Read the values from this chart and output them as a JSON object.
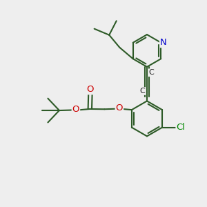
{
  "bg_color": "#eeeeee",
  "bond_color": "#2d5a27",
  "bond_width": 1.5,
  "atom_colors": {
    "N": "#0000cc",
    "O": "#cc0000",
    "Cl": "#008800",
    "C": "#1a1a1a"
  },
  "font_size": 8.5
}
